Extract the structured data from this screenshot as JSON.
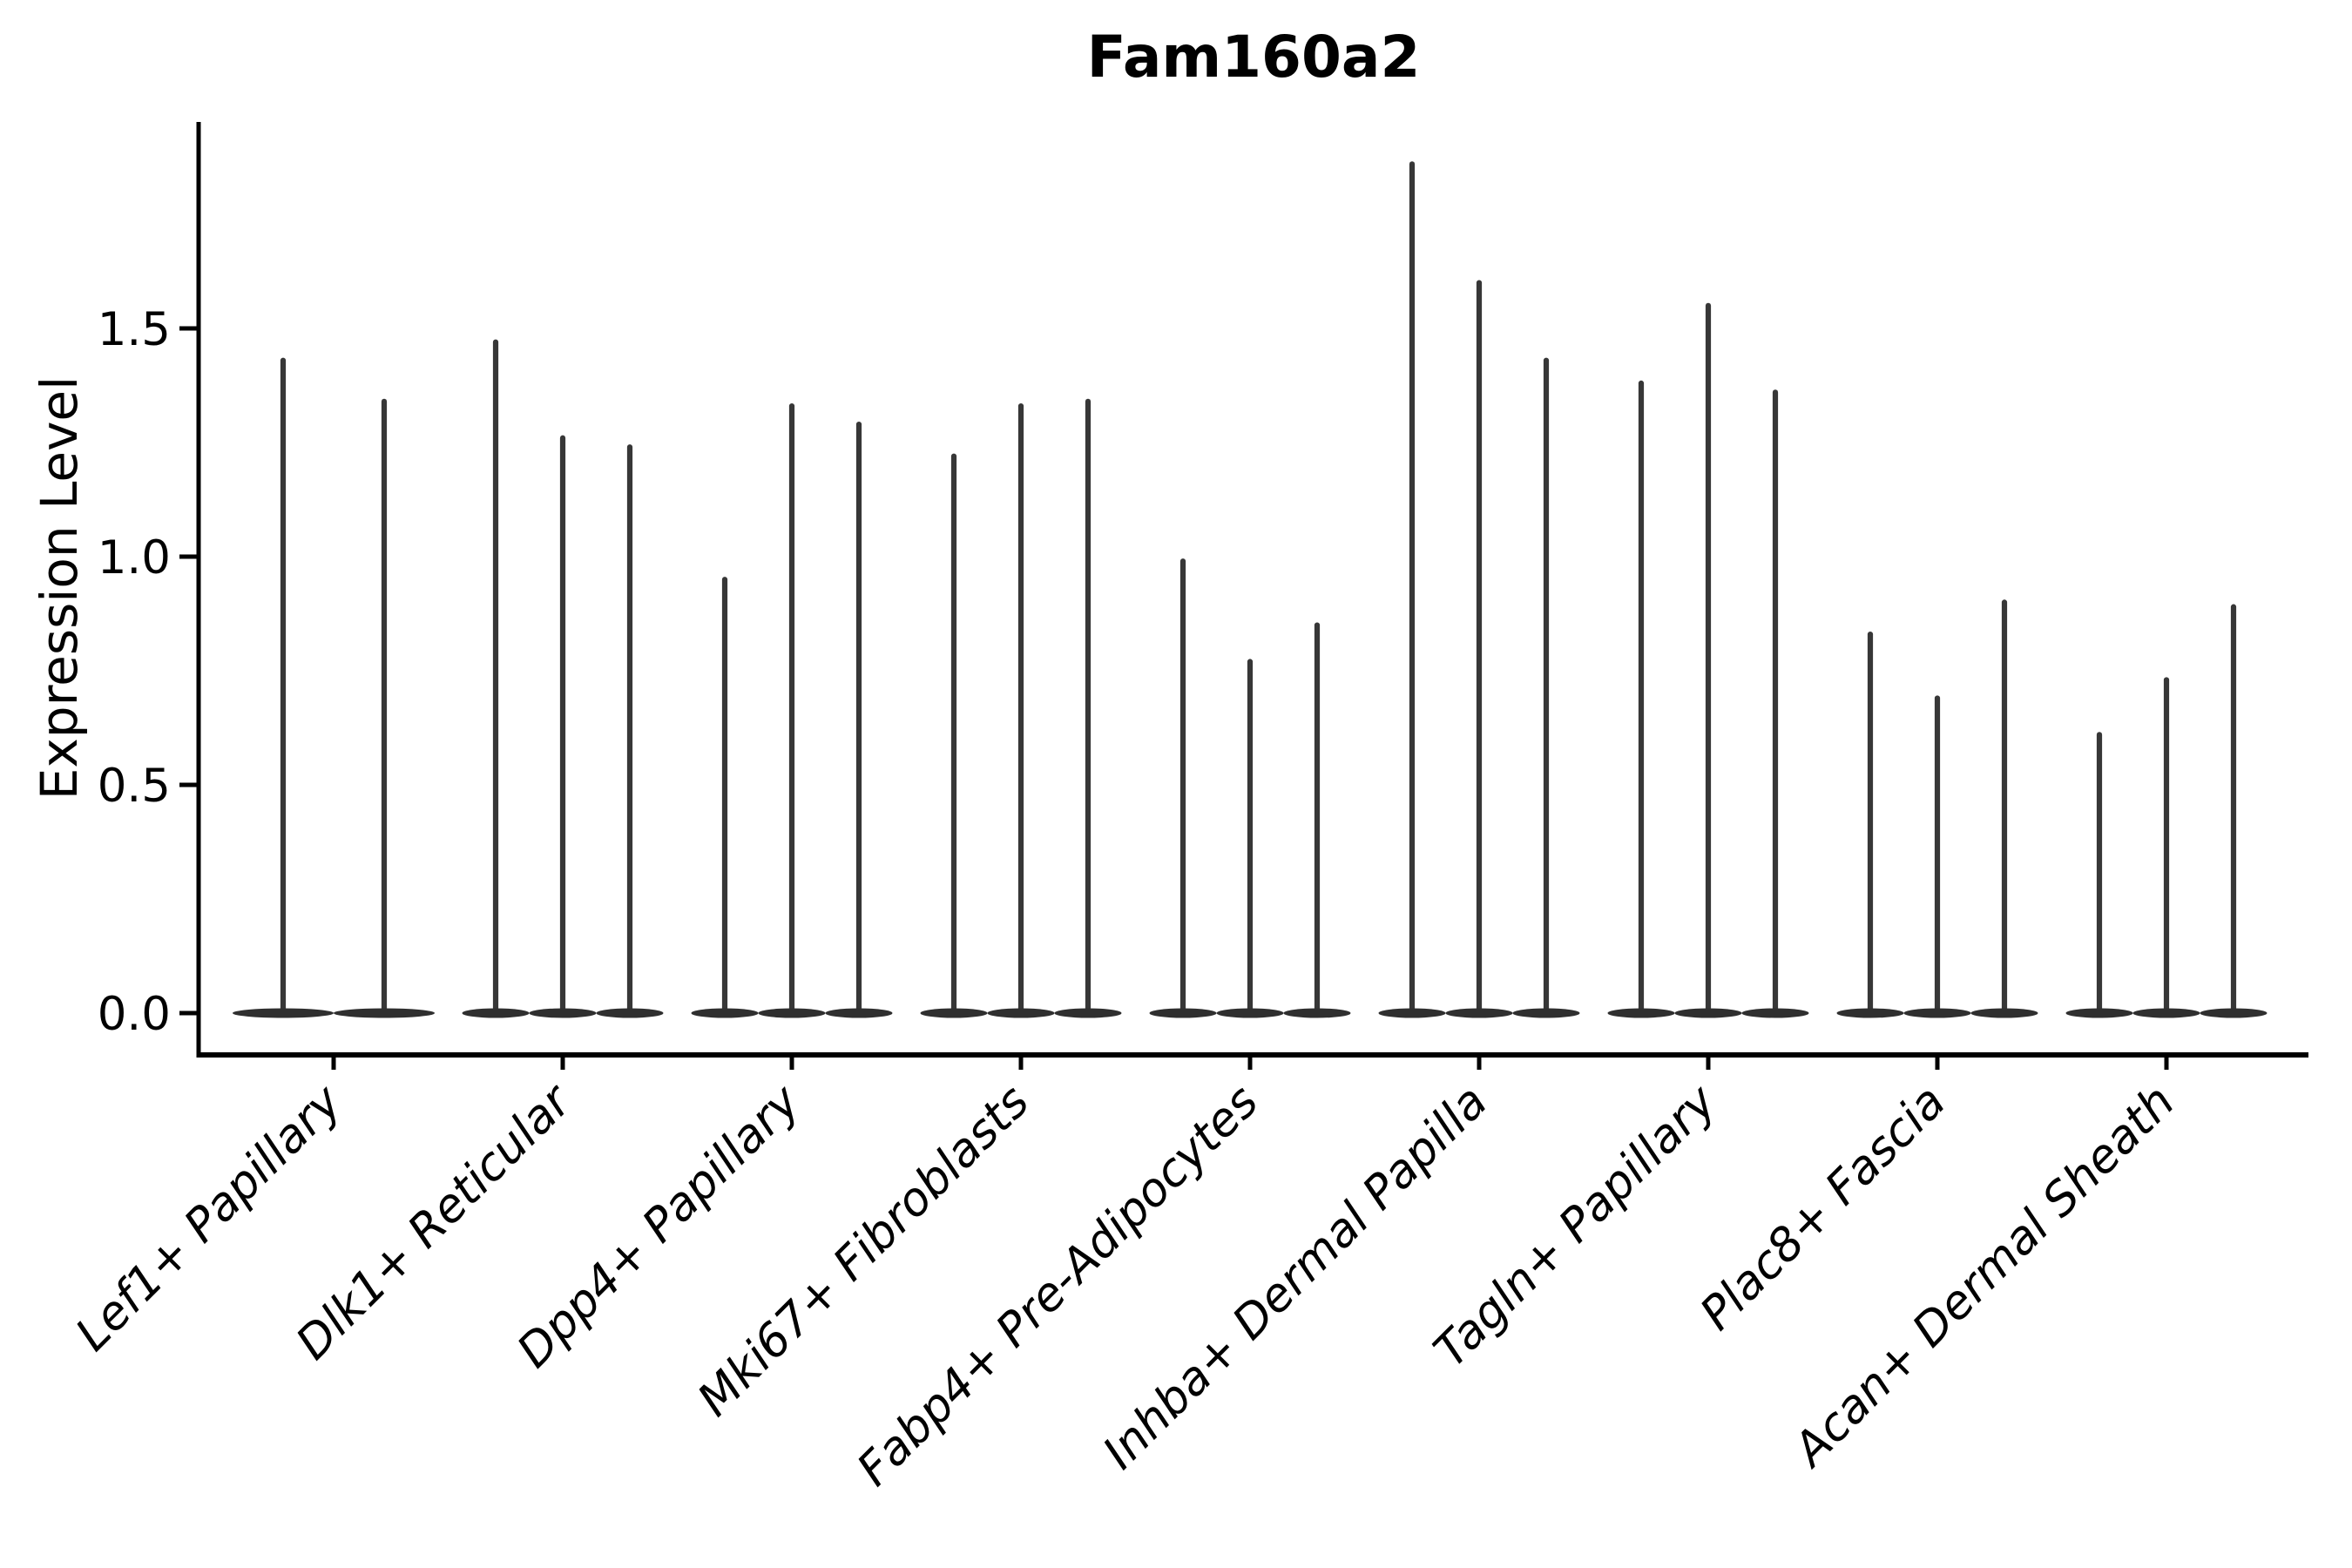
{
  "title": "Fam160a2",
  "chart_data": {
    "type": "violin",
    "title": "Fam160a2",
    "xlabel": "",
    "ylabel": "Expression Level",
    "ylim": [
      0,
      1.95
    ],
    "grid": false,
    "legend_position": "none",
    "yticks": [
      {
        "value": 0.0,
        "label": "0.0"
      },
      {
        "value": 0.5,
        "label": "0.5"
      },
      {
        "value": 1.0,
        "label": "1.0"
      },
      {
        "value": 1.5,
        "label": "1.5"
      }
    ],
    "categories": [
      "Lef1+ Papillary",
      "Dlk1+ Reticular",
      "Dpp4+ Papillary",
      "Mki67+ Fibroblasts",
      "Fabp4+ Pre-Adipocytes",
      "Inhba+ Dermal Papilla",
      "Tagln+ Papillary",
      "Plac8+ Fascia",
      "Acan+ Dermal Sheath"
    ],
    "series": [
      {
        "category": "Lef1+ Papillary",
        "violin_max_values": [
          1.43,
          1.34
        ]
      },
      {
        "category": "Dlk1+ Reticular",
        "violin_max_values": [
          1.47,
          1.26,
          1.24
        ]
      },
      {
        "category": "Dpp4+ Papillary",
        "violin_max_values": [
          0.95,
          1.33,
          1.29
        ]
      },
      {
        "category": "Mki67+ Fibroblasts",
        "violin_max_values": [
          1.22,
          1.33,
          1.34
        ]
      },
      {
        "category": "Fabp4+ Pre-Adipocytes",
        "violin_max_values": [
          0.99,
          0.77,
          0.85
        ]
      },
      {
        "category": "Inhba+ Dermal Papilla",
        "violin_max_values": [
          1.86,
          1.6,
          1.43
        ]
      },
      {
        "category": "Tagln+ Papillary",
        "violin_max_values": [
          1.38,
          1.55,
          1.36
        ]
      },
      {
        "category": "Plac8+ Fascia",
        "violin_max_values": [
          0.83,
          0.69,
          0.9
        ]
      },
      {
        "category": "Acan+ Dermal Sheath",
        "violin_max_values": [
          0.61,
          0.73,
          0.89
        ]
      }
    ],
    "violin_shape_note": "each violin is a wide flat density bulge at 0 with a thin spike up to its max value",
    "colors": {
      "violin_fill": "#2f2f2f",
      "violin_stroke": "#373737",
      "axis": "#000000",
      "text": "#000000",
      "background": "#ffffff"
    }
  }
}
